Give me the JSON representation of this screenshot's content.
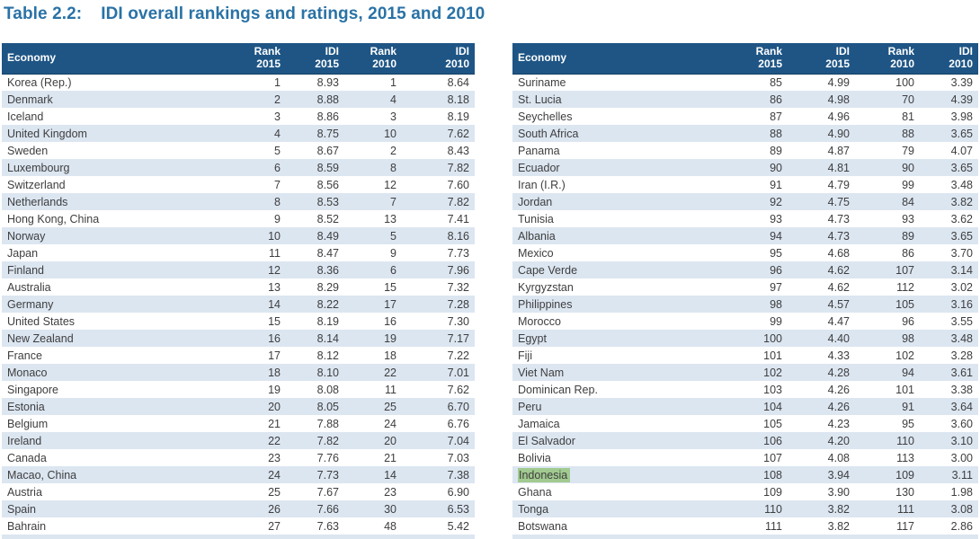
{
  "title": {
    "label": "Table 2.2:",
    "text": "IDI overall rankings and ratings, 2015 and 2010"
  },
  "columns": {
    "economy": "Economy",
    "rank_2015": [
      "Rank",
      "2015"
    ],
    "idi_2015": [
      "IDI",
      "2015"
    ],
    "rank_2010": [
      "Rank",
      "2010"
    ],
    "idi_2010": [
      "IDI",
      "2010"
    ]
  },
  "highlighted_economy": "Indonesia",
  "colors": {
    "header_bg": "#1E5585",
    "header_text": "#FFFFFF",
    "stripe": "#DCE6F1",
    "body_text": "#3E3E3E",
    "title_text": "#2A72A5",
    "highlight_bg": "#A1CA90"
  },
  "left_table": {
    "rows": [
      [
        "Korea (Rep.)",
        "1",
        "8.93",
        "1",
        "8.64"
      ],
      [
        "Denmark",
        "2",
        "8.88",
        "4",
        "8.18"
      ],
      [
        "Iceland",
        "3",
        "8.86",
        "3",
        "8.19"
      ],
      [
        "United Kingdom",
        "4",
        "8.75",
        "10",
        "7.62"
      ],
      [
        "Sweden",
        "5",
        "8.67",
        "2",
        "8.43"
      ],
      [
        "Luxembourg",
        "6",
        "8.59",
        "8",
        "7.82"
      ],
      [
        "Switzerland",
        "7",
        "8.56",
        "12",
        "7.60"
      ],
      [
        "Netherlands",
        "8",
        "8.53",
        "7",
        "7.82"
      ],
      [
        "Hong Kong, China",
        "9",
        "8.52",
        "13",
        "7.41"
      ],
      [
        "Norway",
        "10",
        "8.49",
        "5",
        "8.16"
      ],
      [
        "Japan",
        "11",
        "8.47",
        "9",
        "7.73"
      ],
      [
        "Finland",
        "12",
        "8.36",
        "6",
        "7.96"
      ],
      [
        "Australia",
        "13",
        "8.29",
        "15",
        "7.32"
      ],
      [
        "Germany",
        "14",
        "8.22",
        "17",
        "7.28"
      ],
      [
        "United States",
        "15",
        "8.19",
        "16",
        "7.30"
      ],
      [
        "New Zealand",
        "16",
        "8.14",
        "19",
        "7.17"
      ],
      [
        "France",
        "17",
        "8.12",
        "18",
        "7.22"
      ],
      [
        "Monaco",
        "18",
        "8.10",
        "22",
        "7.01"
      ],
      [
        "Singapore",
        "19",
        "8.08",
        "11",
        "7.62"
      ],
      [
        "Estonia",
        "20",
        "8.05",
        "25",
        "6.70"
      ],
      [
        "Belgium",
        "21",
        "7.88",
        "24",
        "6.76"
      ],
      [
        "Ireland",
        "22",
        "7.82",
        "20",
        "7.04"
      ],
      [
        "Canada",
        "23",
        "7.76",
        "21",
        "7.03"
      ],
      [
        "Macao, China",
        "24",
        "7.73",
        "14",
        "7.38"
      ],
      [
        "Austria",
        "25",
        "7.67",
        "23",
        "6.90"
      ],
      [
        "Spain",
        "26",
        "7.66",
        "30",
        "6.53"
      ],
      [
        "Bahrain",
        "27",
        "7.63",
        "48",
        "5.42"
      ]
    ]
  },
  "right_table": {
    "rows": [
      [
        "Suriname",
        "85",
        "4.99",
        "100",
        "3.39"
      ],
      [
        "St. Lucia",
        "86",
        "4.98",
        "70",
        "4.39"
      ],
      [
        "Seychelles",
        "87",
        "4.96",
        "81",
        "3.98"
      ],
      [
        "South Africa",
        "88",
        "4.90",
        "88",
        "3.65"
      ],
      [
        "Panama",
        "89",
        "4.87",
        "79",
        "4.07"
      ],
      [
        "Ecuador",
        "90",
        "4.81",
        "90",
        "3.65"
      ],
      [
        "Iran (I.R.)",
        "91",
        "4.79",
        "99",
        "3.48"
      ],
      [
        "Jordan",
        "92",
        "4.75",
        "84",
        "3.82"
      ],
      [
        "Tunisia",
        "93",
        "4.73",
        "93",
        "3.62"
      ],
      [
        "Albania",
        "94",
        "4.73",
        "89",
        "3.65"
      ],
      [
        "Mexico",
        "95",
        "4.68",
        "86",
        "3.70"
      ],
      [
        "Cape Verde",
        "96",
        "4.62",
        "107",
        "3.14"
      ],
      [
        "Kyrgyzstan",
        "97",
        "4.62",
        "112",
        "3.02"
      ],
      [
        "Philippines",
        "98",
        "4.57",
        "105",
        "3.16"
      ],
      [
        "Morocco",
        "99",
        "4.47",
        "96",
        "3.55"
      ],
      [
        "Egypt",
        "100",
        "4.40",
        "98",
        "3.48"
      ],
      [
        "Fiji",
        "101",
        "4.33",
        "102",
        "3.28"
      ],
      [
        "Viet Nam",
        "102",
        "4.28",
        "94",
        "3.61"
      ],
      [
        "Dominican Rep.",
        "103",
        "4.26",
        "101",
        "3.38"
      ],
      [
        "Peru",
        "104",
        "4.26",
        "91",
        "3.64"
      ],
      [
        "Jamaica",
        "105",
        "4.23",
        "95",
        "3.60"
      ],
      [
        "El Salvador",
        "106",
        "4.20",
        "110",
        "3.10"
      ],
      [
        "Bolivia",
        "107",
        "4.08",
        "113",
        "3.00"
      ],
      [
        "Indonesia",
        "108",
        "3.94",
        "109",
        "3.11"
      ],
      [
        "Ghana",
        "109",
        "3.90",
        "130",
        "1.98"
      ],
      [
        "Tonga",
        "110",
        "3.82",
        "111",
        "3.08"
      ],
      [
        "Botswana",
        "111",
        "3.82",
        "117",
        "2.86"
      ]
    ]
  }
}
